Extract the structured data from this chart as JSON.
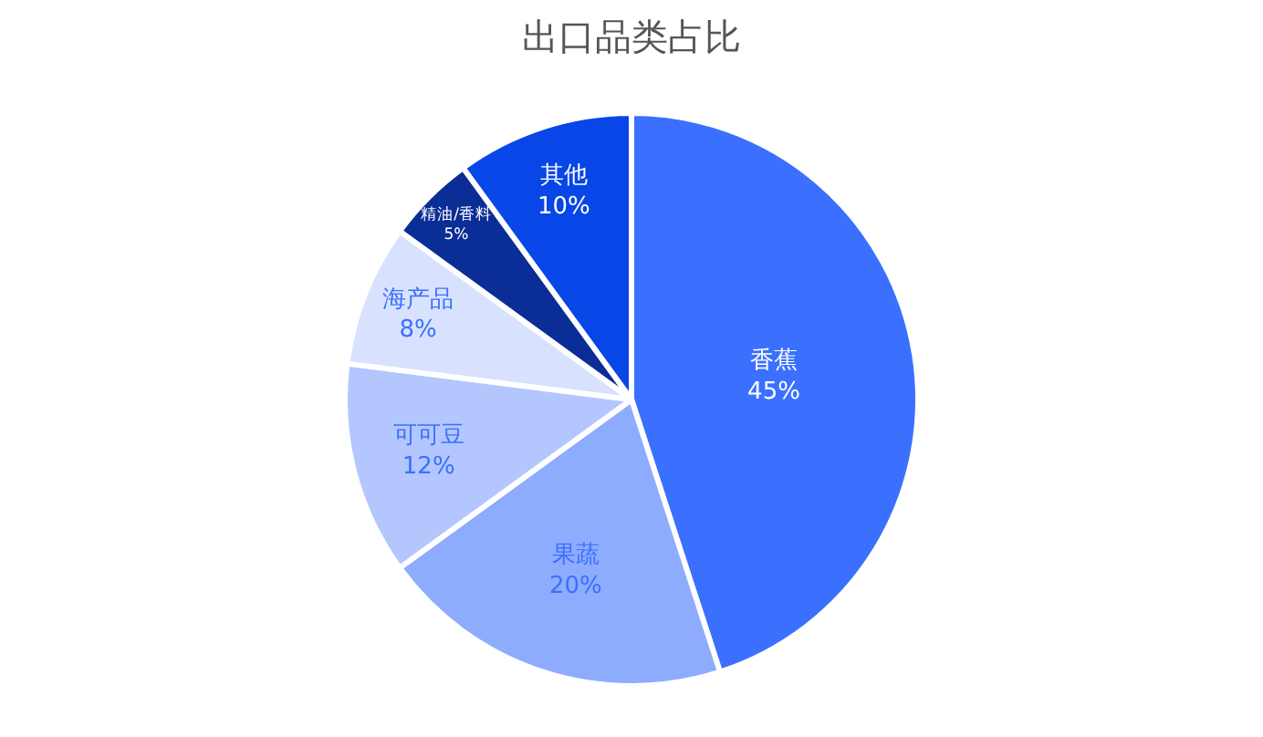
{
  "chart_data": {
    "type": "pie",
    "title": "出口品类占比",
    "categories": [
      "香蕉",
      "果蔬",
      "可可豆",
      "海产品",
      "精油/香料",
      "其他"
    ],
    "values": [
      45,
      20,
      12,
      8,
      5,
      10
    ],
    "value_labels": [
      "45%",
      "20%",
      "12%",
      "8%",
      "5%",
      "10%"
    ],
    "colors": [
      "#3b70fe",
      "#8eacfe",
      "#b3c7fe",
      "#d8e2fe",
      "#0a2d96",
      "#0846e8"
    ],
    "legend": false
  }
}
